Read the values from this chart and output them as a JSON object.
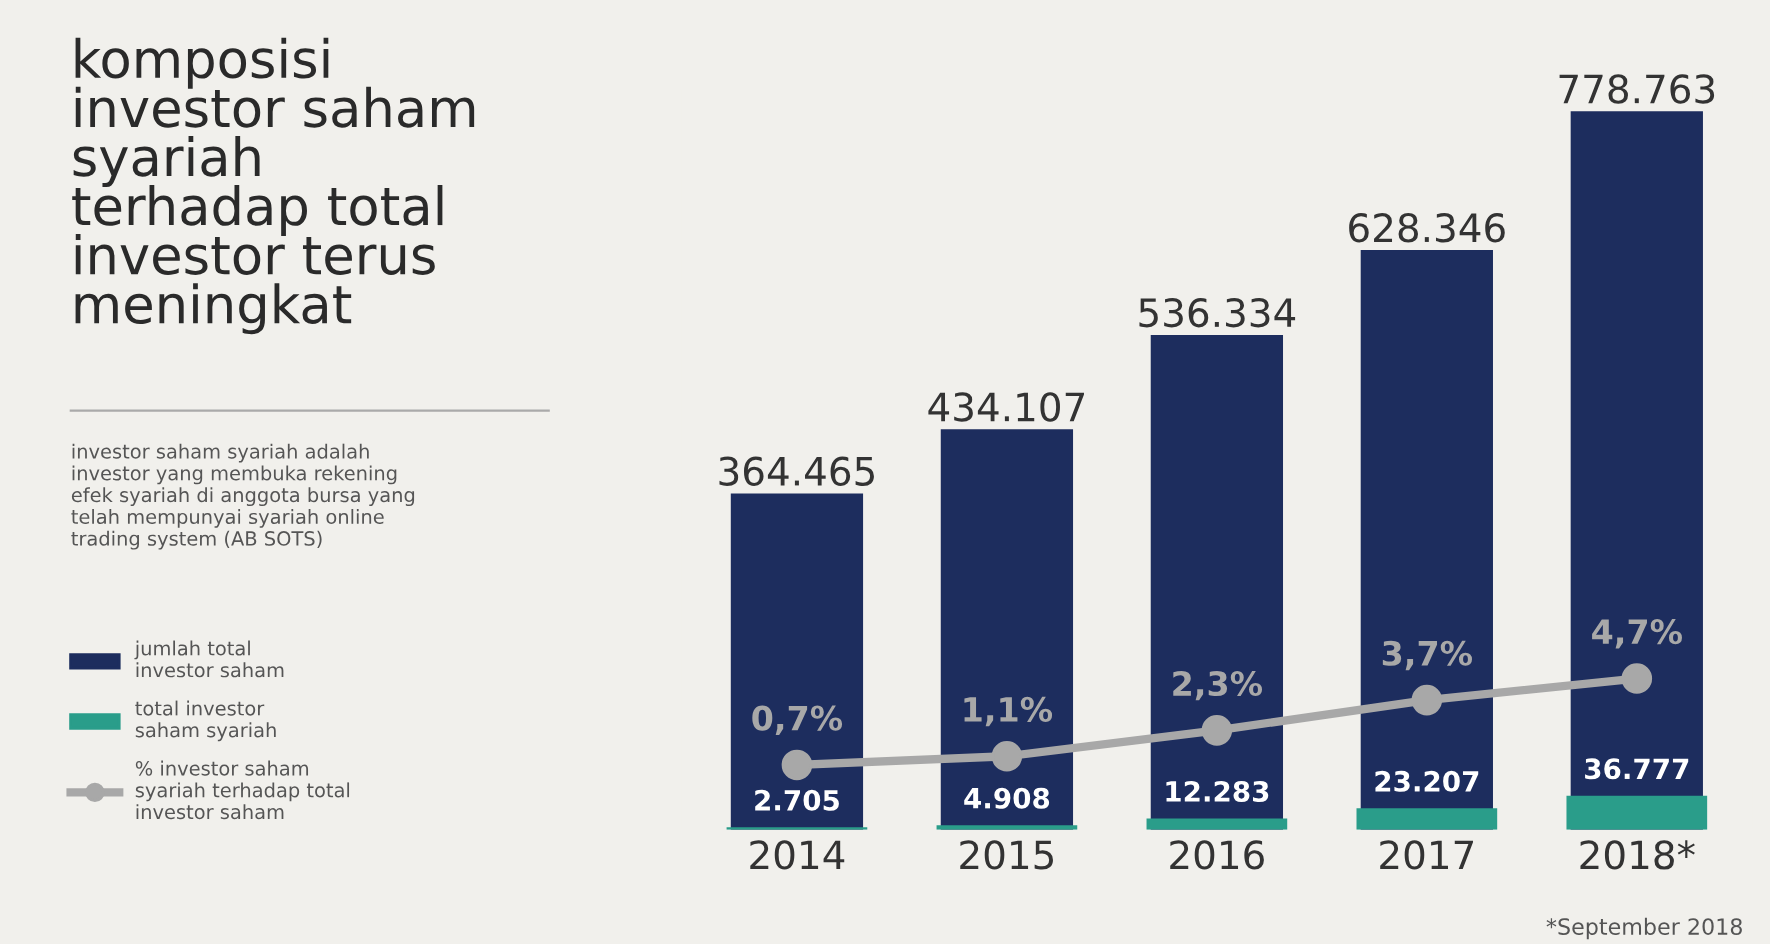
{
  "chart_data": {
    "type": "bar",
    "title": "komposisi\ninvestor saham\nsyariah\nterhadap total\ninvestor terus\nmeningkat",
    "subtitle": "investor saham syariah adalah\ninvestor yang membuka rekening\nefek syariah di anggota bursa yang\ntelah mempunyai syariah online\ntrading system (AB SOTS)",
    "categories": [
      "2014",
      "2015",
      "2016",
      "2017",
      "2018*"
    ],
    "series": [
      {
        "name": "jumlah total\ninvestor saham",
        "color": "#1d2d5e",
        "values": [
          364465,
          434107,
          536334,
          628346,
          778763
        ],
        "value_labels": [
          "364.465",
          "434.107",
          "536.334",
          "628.346",
          "778.763"
        ]
      },
      {
        "name": "total investor\nsaham syariah",
        "color": "#2a9d8a",
        "values": [
          2705,
          4908,
          12283,
          23207,
          36777
        ],
        "value_labels": [
          "2.705",
          "4.908",
          "12.283",
          "23.207",
          "36.777"
        ]
      },
      {
        "name": "% investor saham\nsyariah terhadap total\ninvestor saham",
        "type": "line",
        "axis": "y2",
        "color": "#a8a8a8",
        "marker": "circle",
        "values": [
          0.7,
          1.1,
          2.3,
          3.7,
          4.7
        ],
        "value_labels": [
          "0,7%",
          "1,1%",
          "2,3%",
          "3,7%",
          "4,7%"
        ]
      }
    ],
    "tick_labels": "x",
    "legend": "left",
    "grid": false,
    "annotations": [
      "*September 2018"
    ]
  }
}
